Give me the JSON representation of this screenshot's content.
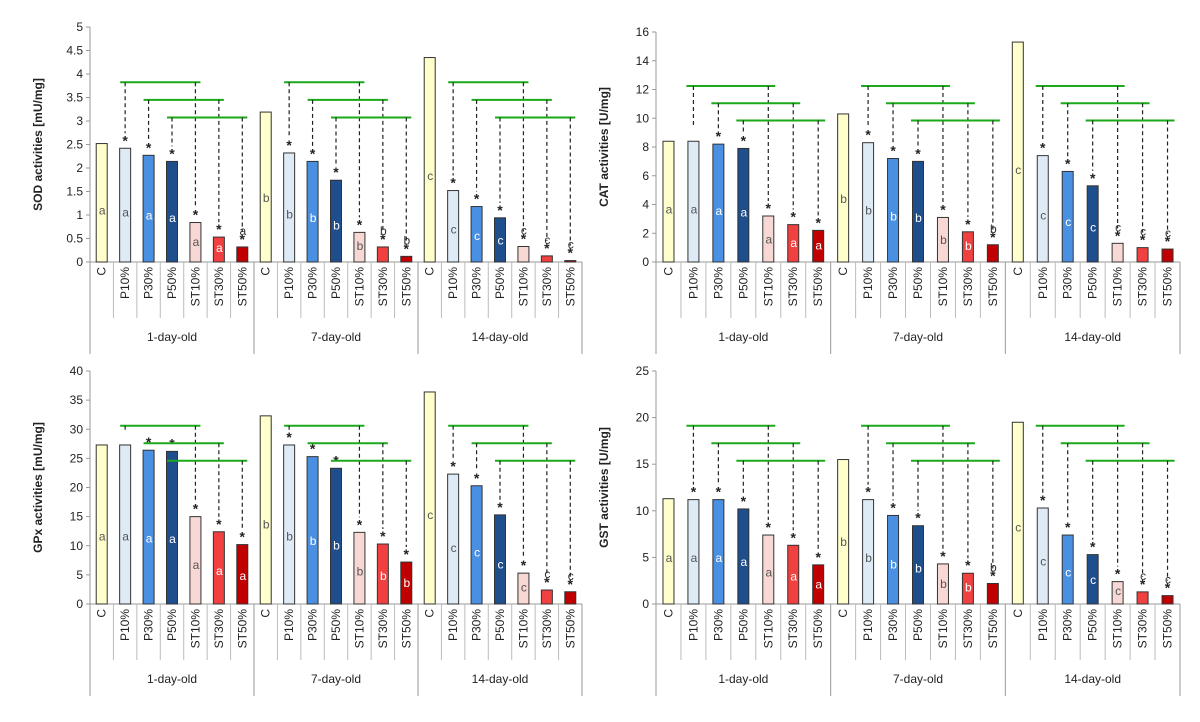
{
  "chart_data": [
    {
      "type": "bar",
      "ylabel": "SOD activities [mU/mg]",
      "ylim": [
        0,
        5
      ],
      "ystep": 0.5,
      "ticks": [
        "0",
        "0.5",
        "1",
        "1.5",
        "2",
        "2.5",
        "3",
        "3.5",
        "4",
        "4.5",
        "5"
      ],
      "treatments": [
        "C",
        "P10%",
        "P30%",
        "P50%",
        "ST10%",
        "ST30%",
        "ST50%"
      ],
      "groups": [
        "1-day-old",
        "7-day-old",
        "14-day-old"
      ],
      "series": [
        {
          "group": "1-day-old",
          "values": [
            2.52,
            2.42,
            2.27,
            2.14,
            0.84,
            0.53,
            0.32
          ],
          "letters": [
            "a",
            "a",
            "a",
            "a",
            "a",
            "a",
            "a"
          ],
          "stars": [
            false,
            true,
            true,
            true,
            true,
            true,
            true
          ]
        },
        {
          "group": "7-day-old",
          "values": [
            3.19,
            2.32,
            2.14,
            1.74,
            0.63,
            0.32,
            0.12
          ],
          "letters": [
            "b",
            "b",
            "b",
            "b",
            "b",
            "b",
            "b"
          ],
          "stars": [
            false,
            true,
            true,
            true,
            true,
            true,
            true
          ]
        },
        {
          "group": "14-day-old",
          "values": [
            4.35,
            1.52,
            1.18,
            0.94,
            0.33,
            0.13,
            0.03
          ],
          "letters": [
            "c",
            "c",
            "c",
            "c",
            "c",
            "c",
            "c"
          ],
          "stars": [
            false,
            true,
            true,
            true,
            true,
            true,
            true
          ]
        }
      ]
    },
    {
      "type": "bar",
      "ylabel": "CAT activities [U/mg]",
      "ylim": [
        0,
        16
      ],
      "ystep": 2,
      "ticks": [
        "0",
        "2",
        "4",
        "6",
        "8",
        "10",
        "12",
        "14",
        "16"
      ],
      "treatments": [
        "C",
        "P10%",
        "P30%",
        "P50%",
        "ST10%",
        "ST30%",
        "ST50%"
      ],
      "groups": [
        "1-day-old",
        "7-day-old",
        "14-day-old"
      ],
      "series": [
        {
          "group": "1-day-old",
          "values": [
            8.4,
            8.4,
            8.2,
            7.9,
            3.2,
            2.6,
            2.2
          ],
          "letters": [
            "a",
            "a",
            "a",
            "a",
            "a",
            "a",
            "a"
          ],
          "stars": [
            false,
            false,
            true,
            true,
            true,
            true,
            true
          ]
        },
        {
          "group": "7-day-old",
          "values": [
            10.3,
            8.3,
            7.2,
            7.0,
            3.1,
            2.1,
            1.2
          ],
          "letters": [
            "b",
            "b",
            "b",
            "b",
            "b",
            "b",
            "b"
          ],
          "stars": [
            false,
            true,
            true,
            true,
            true,
            true,
            true
          ]
        },
        {
          "group": "14-day-old",
          "values": [
            15.3,
            7.4,
            6.3,
            5.3,
            1.3,
            1.0,
            0.9
          ],
          "letters": [
            "c",
            "c",
            "c",
            "c",
            "c",
            "c",
            "c"
          ],
          "stars": [
            false,
            true,
            true,
            true,
            true,
            true,
            true
          ]
        }
      ]
    },
    {
      "type": "bar",
      "ylabel": "GPx activities [mU/mg]",
      "ylim": [
        0,
        40
      ],
      "ystep": 5,
      "ticks": [
        "0",
        "5",
        "10",
        "15",
        "20",
        "25",
        "30",
        "35",
        "40"
      ],
      "treatments": [
        "C",
        "P10%",
        "P30%",
        "P50%",
        "ST10%",
        "ST30%",
        "ST50%"
      ],
      "groups": [
        "1-day-old",
        "7-day-old",
        "14-day-old"
      ],
      "series": [
        {
          "group": "1-day-old",
          "values": [
            27.3,
            27.3,
            26.4,
            26.2,
            15.0,
            12.4,
            10.2
          ],
          "letters": [
            "a",
            "a",
            "a",
            "a",
            "a",
            "a",
            "a"
          ],
          "stars": [
            false,
            false,
            true,
            true,
            true,
            true,
            true
          ]
        },
        {
          "group": "7-day-old",
          "values": [
            32.3,
            27.3,
            25.3,
            23.3,
            12.3,
            10.3,
            7.2
          ],
          "letters": [
            "b",
            "b",
            "b",
            "b",
            "b",
            "b",
            "b"
          ],
          "stars": [
            false,
            true,
            true,
            true,
            true,
            true,
            true
          ]
        },
        {
          "group": "14-day-old",
          "values": [
            36.4,
            22.3,
            20.3,
            15.3,
            5.3,
            2.4,
            2.1
          ],
          "letters": [
            "c",
            "c",
            "c",
            "c",
            "c",
            "c",
            "c"
          ],
          "stars": [
            false,
            true,
            true,
            true,
            true,
            true,
            true
          ]
        }
      ]
    },
    {
      "type": "bar",
      "ylabel": "GST activities [U/mg]",
      "ylim": [
        0,
        25
      ],
      "ystep": 5,
      "ticks": [
        "0",
        "5",
        "10",
        "15",
        "20",
        "25"
      ],
      "treatments": [
        "C",
        "P10%",
        "P30%",
        "P50%",
        "ST10%",
        "ST30%",
        "ST50%"
      ],
      "groups": [
        "1-day-old",
        "7-day-old",
        "14-day-old"
      ],
      "series": [
        {
          "group": "1-day-old",
          "values": [
            11.3,
            11.2,
            11.2,
            10.2,
            7.4,
            6.3,
            4.2
          ],
          "letters": [
            "a",
            "a",
            "a",
            "a",
            "a",
            "a",
            "a"
          ],
          "stars": [
            false,
            true,
            true,
            true,
            true,
            true,
            true
          ]
        },
        {
          "group": "7-day-old",
          "values": [
            15.5,
            11.2,
            9.5,
            8.4,
            4.3,
            3.3,
            2.2
          ],
          "letters": [
            "b",
            "b",
            "b",
            "b",
            "b",
            "b",
            "b"
          ],
          "stars": [
            false,
            true,
            true,
            true,
            true,
            true,
            true
          ]
        },
        {
          "group": "14-day-old",
          "values": [
            19.5,
            10.3,
            7.4,
            5.3,
            2.4,
            1.3,
            0.9
          ],
          "letters": [
            "c",
            "c",
            "c",
            "c",
            "c",
            "c",
            "c"
          ],
          "stars": [
            false,
            true,
            true,
            true,
            true,
            true,
            true
          ]
        }
      ]
    }
  ],
  "colors": {
    "fills": [
      "#ffffcc",
      "#deebf7",
      "#4a90e2",
      "#1f4e8c",
      "#f8d8d4",
      "#f04040",
      "#c00000"
    ],
    "bracket": "#1aaa1a",
    "axis": "#999999"
  }
}
